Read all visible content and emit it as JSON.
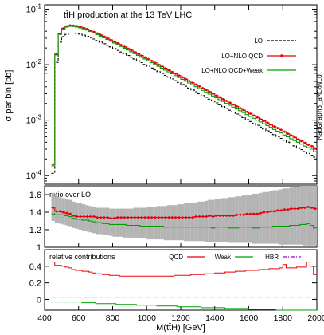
{
  "chart_data": [
    {
      "type": "line",
      "panel": "main",
      "title": "tt̄H production at the 13 TeV LHC",
      "ylabel": "σ per bin [pb]",
      "side_label": "MadGraph5_aMC@NLO",
      "yscale": "log",
      "ylim": [
        7e-05,
        0.12
      ],
      "xlim": [
        400,
        2000
      ],
      "y_ticks": [
        {
          "v": 0.1,
          "label": "10-1"
        },
        {
          "v": 0.01,
          "label": "10-2"
        },
        {
          "v": 0.001,
          "label": "10-3"
        },
        {
          "v": 0.0001,
          "label": "10-4"
        }
      ],
      "bin_edges": [
        440,
        460,
        480,
        500,
        520,
        540,
        560,
        580,
        600,
        620,
        640,
        660,
        680,
        700,
        720,
        740,
        760,
        780,
        800,
        820,
        840,
        860,
        880,
        900,
        920,
        940,
        960,
        980,
        1000,
        1020,
        1040,
        1060,
        1080,
        1100,
        1120,
        1140,
        1160,
        1180,
        1200,
        1220,
        1240,
        1260,
        1280,
        1300,
        1320,
        1340,
        1360,
        1380,
        1400,
        1420,
        1440,
        1460,
        1480,
        1500,
        1520,
        1540,
        1560,
        1580,
        1600,
        1620,
        1640,
        1660,
        1680,
        1700,
        1720,
        1740,
        1760,
        1780,
        1800,
        1820,
        1840,
        1860,
        1880,
        1900,
        1920,
        1940,
        1960,
        1980,
        2000
      ],
      "series": [
        {
          "name": "LO",
          "style": "dashed",
          "color": "#000000",
          "values": [
            0.00011,
            0.011,
            0.0255,
            0.032,
            0.035,
            0.037,
            0.037,
            0.0365,
            0.0355,
            0.034,
            0.0325,
            0.0307,
            0.0289,
            0.0272,
            0.0255,
            0.0239,
            0.0223,
            0.0209,
            0.0195,
            0.0181,
            0.0169,
            0.0157,
            0.0146,
            0.0136,
            0.0126,
            0.0117,
            0.0109,
            0.0101,
            0.00937,
            0.0087,
            0.00807,
            0.00749,
            0.00694,
            0.00644,
            0.00597,
            0.00554,
            0.00513,
            0.00476,
            0.00441,
            0.00409,
            0.00379,
            0.00351,
            0.00325,
            0.00301,
            0.00279,
            0.00258,
            0.00239,
            0.00222,
            0.00205,
            0.0019,
            0.00176,
            0.00163,
            0.00151,
            0.0014,
            0.00129,
            0.0012,
            0.00111,
            0.00102,
            0.000948,
            0.000877,
            0.000811,
            0.00075,
            0.000694,
            0.000642,
            0.000594,
            0.000549,
            0.000508,
            0.00047,
            0.000435,
            0.000402,
            0.000372,
            0.000344,
            0.000318,
            0.000294,
            0.000272,
            0.000252,
            0.000233,
            0.000216
          ]
        },
        {
          "name": "LO+NLO QCD",
          "style": "solid",
          "color": "#e8000b",
          "marker": "dot",
          "values": [
            0.00016,
            0.0155,
            0.036,
            0.045,
            0.049,
            0.051,
            0.0505,
            0.0495,
            0.048,
            0.046,
            0.0438,
            0.0413,
            0.0389,
            0.0365,
            0.0342,
            0.032,
            0.0299,
            0.0279,
            0.026,
            0.0243,
            0.0226,
            0.021,
            0.0195,
            0.0182,
            0.0169,
            0.0157,
            0.0146,
            0.0135,
            0.0126,
            0.0117,
            0.0108,
            0.01,
            0.0093,
            0.00863,
            0.008,
            0.00742,
            0.00688,
            0.00638,
            0.00592,
            0.00549,
            0.00509,
            0.00472,
            0.00438,
            0.00406,
            0.00377,
            0.00349,
            0.00324,
            0.003,
            0.00278,
            0.00258,
            0.00239,
            0.00222,
            0.00206,
            0.00191,
            0.00177,
            0.00164,
            0.00152,
            0.00141,
            0.00131,
            0.00121,
            0.00112,
            0.00104,
            0.00097,
            0.0009,
            0.00083,
            0.00077,
            0.00072,
            0.00067,
            0.00062,
            0.00057,
            0.00053,
            0.00049,
            0.00045,
            0.00042,
            0.00039,
            0.00036,
            0.00034,
            0.00031
          ]
        },
        {
          "name": "LO+NLO QCD+Weak",
          "style": "solid",
          "color": "#00a000",
          "values": [
            0.00015,
            0.015,
            0.035,
            0.0438,
            0.0475,
            0.0493,
            0.0487,
            0.0476,
            0.0461,
            0.0441,
            0.042,
            0.0395,
            0.0371,
            0.0348,
            0.0326,
            0.0304,
            0.0284,
            0.0264,
            0.0246,
            0.0229,
            0.0213,
            0.0198,
            0.0184,
            0.0171,
            0.0158,
            0.0147,
            0.0136,
            0.0126,
            0.0117,
            0.0109,
            0.0101,
            0.00932,
            0.00864,
            0.008,
            0.00741,
            0.00686,
            0.00635,
            0.00588,
            0.00545,
            0.00505,
            0.00468,
            0.00433,
            0.00401,
            0.00371,
            0.00344,
            0.00318,
            0.00295,
            0.00273,
            0.00253,
            0.00234,
            0.00217,
            0.00201,
            0.00186,
            0.00172,
            0.00159,
            0.00148,
            0.00137,
            0.00126,
            0.00117,
            0.00108,
            0.001,
            0.00093,
            0.00086,
            0.0008,
            0.00074,
            0.00068,
            0.00063,
            0.00059,
            0.00054,
            0.0005,
            0.00046,
            0.00043,
            0.0004,
            0.00037,
            0.00034,
            0.00032,
            0.0003,
            0.00027
          ]
        }
      ],
      "legend_placement": "right",
      "grid": false
    },
    {
      "type": "line",
      "panel": "ratio",
      "title": "ratio over LO",
      "ylim": [
        1.0,
        1.7
      ],
      "y_ticks": [
        1,
        1.2,
        1.4,
        1.6
      ],
      "bin_edges_ref": "main",
      "series": [
        {
          "name": "LO+NLO QCD",
          "color": "#e8000b",
          "marker": "dot",
          "values": [
            1.45,
            1.41,
            1.41,
            1.4,
            1.39,
            1.38,
            1.36,
            1.35,
            1.35,
            1.35,
            1.35,
            1.35,
            1.35,
            1.34,
            1.34,
            1.34,
            1.34,
            1.33,
            1.33,
            1.34,
            1.34,
            1.34,
            1.34,
            1.34,
            1.34,
            1.34,
            1.34,
            1.34,
            1.34,
            1.34,
            1.34,
            1.34,
            1.34,
            1.34,
            1.34,
            1.34,
            1.34,
            1.34,
            1.34,
            1.34,
            1.34,
            1.34,
            1.35,
            1.35,
            1.35,
            1.35,
            1.36,
            1.35,
            1.36,
            1.36,
            1.36,
            1.36,
            1.36,
            1.36,
            1.37,
            1.37,
            1.37,
            1.38,
            1.38,
            1.38,
            1.38,
            1.39,
            1.4,
            1.4,
            1.41,
            1.41,
            1.42,
            1.42,
            1.43,
            1.43,
            1.44,
            1.44,
            1.44,
            1.45,
            1.45,
            1.46,
            1.45,
            1.44
          ]
        },
        {
          "name": "LO+NLO QCD+Weak",
          "color": "#00a000",
          "values": [
            1.38,
            1.37,
            1.37,
            1.37,
            1.36,
            1.35,
            1.33,
            1.32,
            1.32,
            1.31,
            1.31,
            1.3,
            1.29,
            1.28,
            1.28,
            1.27,
            1.27,
            1.26,
            1.26,
            1.26,
            1.26,
            1.26,
            1.25,
            1.25,
            1.25,
            1.25,
            1.24,
            1.24,
            1.24,
            1.24,
            1.24,
            1.24,
            1.24,
            1.23,
            1.23,
            1.23,
            1.23,
            1.23,
            1.23,
            1.23,
            1.23,
            1.23,
            1.23,
            1.23,
            1.23,
            1.23,
            1.23,
            1.22,
            1.23,
            1.23,
            1.23,
            1.23,
            1.22,
            1.22,
            1.22,
            1.23,
            1.23,
            1.23,
            1.23,
            1.22,
            1.22,
            1.23,
            1.23,
            1.23,
            1.23,
            1.24,
            1.24,
            1.24,
            1.24,
            1.24,
            1.25,
            1.25,
            1.25,
            1.26,
            1.26,
            1.27,
            1.25,
            1.22
          ]
        },
        {
          "name": "scale band",
          "color": "#b4b4b4",
          "low": [
            1.3,
            1.28,
            1.27,
            1.26,
            1.25,
            1.24,
            1.22,
            1.21,
            1.2,
            1.19,
            1.18,
            1.17,
            1.16,
            1.15,
            1.15,
            1.14,
            1.14,
            1.13,
            1.12,
            1.12,
            1.12,
            1.11,
            1.11,
            1.11,
            1.1,
            1.1,
            1.1,
            1.1,
            1.09,
            1.09,
            1.09,
            1.09,
            1.09,
            1.08,
            1.08,
            1.08,
            1.08,
            1.08,
            1.08,
            1.07,
            1.07,
            1.07,
            1.07,
            1.07,
            1.07,
            1.06,
            1.06,
            1.06,
            1.06,
            1.06,
            1.06,
            1.06,
            1.05,
            1.05,
            1.05,
            1.05,
            1.05,
            1.05,
            1.05,
            1.04,
            1.04,
            1.04,
            1.04,
            1.04,
            1.04,
            1.04,
            1.04,
            1.03,
            1.03,
            1.03,
            1.03,
            1.03,
            1.03,
            1.03,
            1.02,
            1.02,
            1.02,
            1.02
          ],
          "high": [
            1.62,
            1.58,
            1.57,
            1.56,
            1.55,
            1.54,
            1.52,
            1.51,
            1.5,
            1.49,
            1.48,
            1.47,
            1.46,
            1.45,
            1.45,
            1.45,
            1.45,
            1.44,
            1.44,
            1.44,
            1.44,
            1.44,
            1.44,
            1.44,
            1.45,
            1.45,
            1.45,
            1.45,
            1.46,
            1.46,
            1.46,
            1.47,
            1.47,
            1.47,
            1.48,
            1.48,
            1.48,
            1.49,
            1.49,
            1.5,
            1.5,
            1.51,
            1.51,
            1.52,
            1.52,
            1.53,
            1.54,
            1.54,
            1.55,
            1.55,
            1.56,
            1.56,
            1.57,
            1.57,
            1.58,
            1.58,
            1.59,
            1.6,
            1.6,
            1.61,
            1.61,
            1.62,
            1.63,
            1.63,
            1.64,
            1.65,
            1.65,
            1.66,
            1.67,
            1.67,
            1.68,
            1.69,
            1.69,
            1.7,
            1.7,
            1.7,
            1.7,
            1.7
          ]
        }
      ]
    },
    {
      "type": "line",
      "panel": "relative",
      "title": "relative contributions",
      "xlabel": "M(tt̄H) [GeV]",
      "ylim": [
        -0.13,
        0.6
      ],
      "y_ticks": [
        0,
        0.2,
        0.4
      ],
      "x_ticks": [
        400,
        600,
        800,
        1000,
        1200,
        1400,
        1600,
        1800,
        2000
      ],
      "bin_edges_ref": "main",
      "series": [
        {
          "name": "QCD",
          "color": "#e8000b",
          "values": [
            0.45,
            0.41,
            0.41,
            0.4,
            0.39,
            0.38,
            0.36,
            0.35,
            0.35,
            0.34,
            0.34,
            0.33,
            0.32,
            0.31,
            0.31,
            0.3,
            0.3,
            0.29,
            0.29,
            0.29,
            0.28,
            0.28,
            0.28,
            0.28,
            0.28,
            0.28,
            0.28,
            0.28,
            0.28,
            0.28,
            0.28,
            0.28,
            0.28,
            0.28,
            0.28,
            0.28,
            0.29,
            0.29,
            0.29,
            0.29,
            0.29,
            0.3,
            0.3,
            0.3,
            0.3,
            0.31,
            0.31,
            0.31,
            0.32,
            0.32,
            0.32,
            0.33,
            0.33,
            0.33,
            0.34,
            0.34,
            0.34,
            0.35,
            0.35,
            0.35,
            0.35,
            0.36,
            0.36,
            0.36,
            0.37,
            0.37,
            0.37,
            0.38,
            0.42,
            0.38,
            0.38,
            0.38,
            0.39,
            0.39,
            0.39,
            0.45,
            0.4,
            0.3
          ]
        },
        {
          "name": "Weak",
          "color": "#00a000",
          "values": [
            -0.03,
            -0.03,
            -0.03,
            -0.03,
            -0.03,
            -0.03,
            -0.03,
            -0.03,
            -0.03,
            -0.04,
            -0.04,
            -0.04,
            -0.04,
            -0.05,
            -0.05,
            -0.05,
            -0.05,
            -0.05,
            -0.05,
            -0.06,
            -0.06,
            -0.06,
            -0.06,
            -0.06,
            -0.06,
            -0.07,
            -0.07,
            -0.07,
            -0.07,
            -0.07,
            -0.07,
            -0.08,
            -0.08,
            -0.08,
            -0.08,
            -0.08,
            -0.08,
            -0.09,
            -0.09,
            -0.09,
            -0.09,
            -0.09,
            -0.09,
            -0.09,
            -0.1,
            -0.1,
            -0.1,
            -0.1,
            -0.1,
            -0.1,
            -0.1,
            -0.11,
            -0.11,
            -0.11,
            -0.11,
            -0.11,
            -0.11,
            -0.11,
            -0.12,
            -0.12,
            -0.12,
            -0.12,
            -0.12,
            -0.12,
            -0.12,
            -0.12,
            -0.13,
            -0.13,
            -0.13,
            -0.13,
            -0.13,
            -0.13,
            -0.13,
            -0.13,
            -0.13,
            -0.13,
            -0.13,
            -0.13
          ]
        },
        {
          "name": "HBR",
          "color": "#9400d3",
          "style": "dashdot",
          "values": [
            0.02,
            0.02,
            0.02,
            0.02,
            0.02,
            0.02,
            0.02,
            0.02,
            0.02,
            0.02,
            0.02,
            0.02,
            0.02,
            0.02,
            0.02,
            0.02,
            0.02,
            0.02,
            0.02,
            0.02,
            0.02,
            0.02,
            0.02,
            0.02,
            0.02,
            0.02,
            0.02,
            0.02,
            0.02,
            0.02,
            0.02,
            0.02,
            0.02,
            0.02,
            0.02,
            0.02,
            0.02,
            0.02,
            0.02,
            0.02,
            0.02,
            0.02,
            0.02,
            0.02,
            0.02,
            0.02,
            0.02,
            0.02,
            0.02,
            0.02,
            0.02,
            0.02,
            0.02,
            0.02,
            0.02,
            0.02,
            0.02,
            0.02,
            0.02,
            0.02,
            0.02,
            0.02,
            0.02,
            0.02,
            0.02,
            0.02,
            0.02,
            0.02,
            0.02,
            0.02,
            0.02,
            0.02,
            0.02,
            0.02,
            0.02,
            0.02,
            0.02,
            0.02
          ]
        }
      ]
    }
  ]
}
